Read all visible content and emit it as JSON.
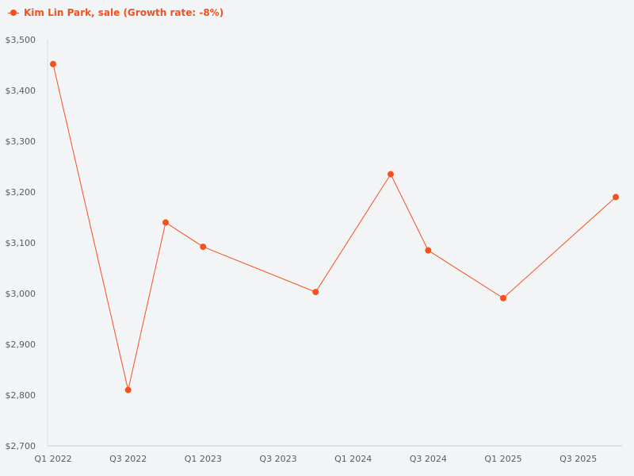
{
  "chart_data": {
    "type": "line",
    "title": "",
    "xlabel": "",
    "ylabel": "",
    "x": [
      "Q1 2022",
      "Q2 2022",
      "Q3 2022",
      "Q4 2022",
      "Q1 2023",
      "Q2 2023",
      "Q3 2023",
      "Q4 2023",
      "Q1 2024",
      "Q2 2024",
      "Q3 2024",
      "Q4 2024",
      "Q1 2025",
      "Q2 2025",
      "Q3 2025",
      "Q4 2025"
    ],
    "x_tick_labels": [
      "Q1 2022",
      "Q3 2022",
      "Q1 2023",
      "Q3 2023",
      "Q1 2024",
      "Q3 2024",
      "Q1 2025",
      "Q3 2025"
    ],
    "y_tick_labels": [
      "$2,700",
      "$2,800",
      "$2,900",
      "$3,000",
      "$3,100",
      "$3,200",
      "$3,300",
      "$3,400",
      "$3,500"
    ],
    "ylim": [
      2700,
      3500
    ],
    "grid": false,
    "legend_position": "top-left",
    "series": [
      {
        "name": "Kim Lin Park, sale (Growth rate: -8%)",
        "color": "#f4511e",
        "points": [
          {
            "x": "Q1 2022",
            "y": 3452
          },
          {
            "x": "Q3 2022",
            "y": 2810
          },
          {
            "x": "Q4 2022",
            "y": 3140
          },
          {
            "x": "Q1 2023",
            "y": 3092
          },
          {
            "x": "Q4 2023",
            "y": 3003
          },
          {
            "x": "Q2 2024",
            "y": 3235
          },
          {
            "x": "Q3 2024",
            "y": 3085
          },
          {
            "x": "Q1 2025",
            "y": 2991
          },
          {
            "x": "Q4 2025",
            "y": 3190
          }
        ]
      }
    ]
  }
}
